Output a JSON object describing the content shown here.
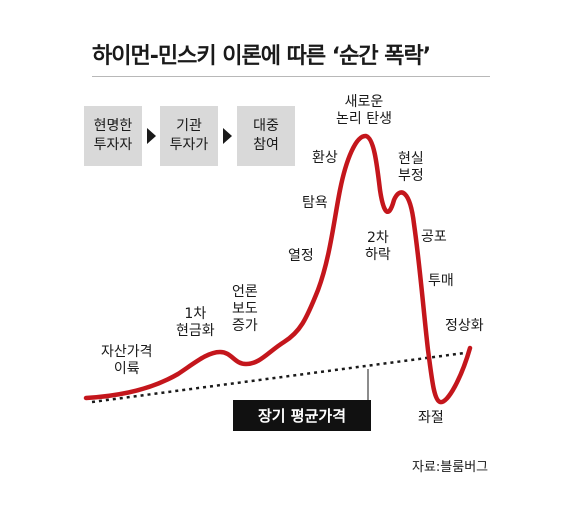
{
  "title": "하이먼-민스키 이론에 따른 ‘순간 폭락’",
  "stages": [
    {
      "line1": "현명한",
      "line2": "투자자"
    },
    {
      "line1": "기관",
      "line2": "투자가"
    },
    {
      "line1": "대중",
      "line2": "참여"
    }
  ],
  "labels": {
    "asset_rise_1": "자산가격",
    "asset_rise_2": "이륙",
    "cash_1": "1차",
    "cash_2": "현금화",
    "media_1": "언론",
    "media_2": "보도",
    "media_3": "증가",
    "enthusiasm": "열정",
    "greed": "탐욕",
    "delusion": "환상",
    "new_paradigm_1": "새로운",
    "new_paradigm_2": "논리 탄생",
    "reality_1": "현실",
    "reality_2": "부정",
    "second_fall_1": "2차",
    "second_fall_2": "하락",
    "fear": "공포",
    "dumping": "투매",
    "despair": "좌절",
    "normalization": "정상화"
  },
  "long_term_average": "장기 평균가격",
  "source": "자료:블룸버그",
  "colors": {
    "curve": "#c4161c",
    "stage_bg": "#d9d9d9",
    "avg_box": "#111111"
  }
}
